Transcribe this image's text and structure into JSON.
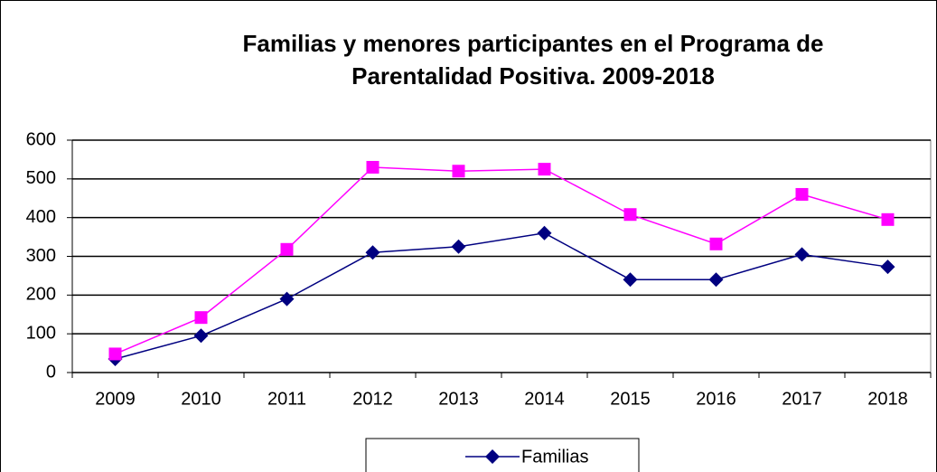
{
  "chart_data": {
    "type": "line",
    "title": [
      "Familias y menores participantes en el Programa de",
      "Parentalidad Positiva. 2009-2018"
    ],
    "categories": [
      "2009",
      "2010",
      "2011",
      "2012",
      "2013",
      "2014",
      "2015",
      "2016",
      "2017",
      "2018"
    ],
    "series": [
      {
        "name": "Familias",
        "color": "#000080",
        "marker": "diamond",
        "values": [
          35,
          95,
          190,
          310,
          325,
          360,
          240,
          240,
          305,
          273
        ]
      },
      {
        "color": "#ff00ff",
        "marker": "square",
        "values": [
          48,
          142,
          318,
          530,
          520,
          525,
          408,
          332,
          460,
          395
        ]
      }
    ],
    "ylim": [
      0,
      600
    ],
    "yticks": [
      0,
      100,
      200,
      300,
      400,
      500,
      600
    ],
    "grid": true
  }
}
